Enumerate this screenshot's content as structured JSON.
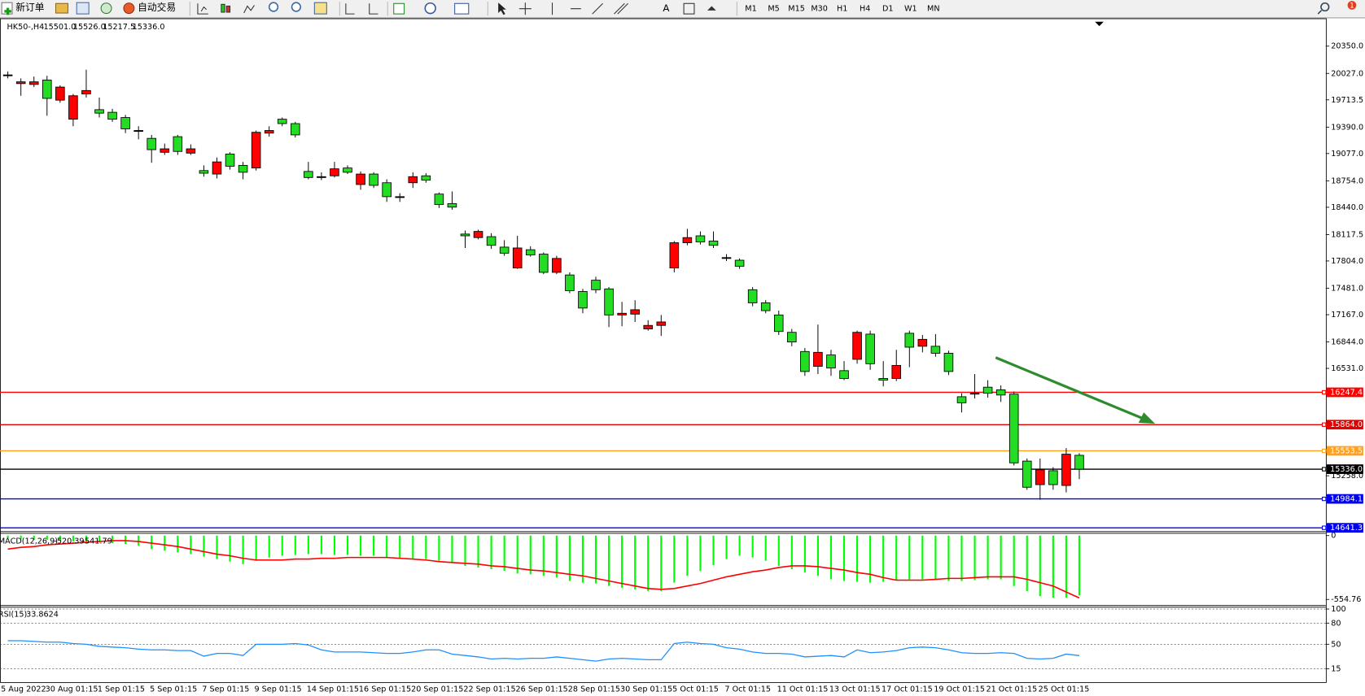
{
  "toolbar": {
    "new_order": "新订单",
    "auto_trading": "自动交易",
    "timeframes": [
      "M1",
      "M5",
      "M15",
      "M30",
      "H1",
      "H4",
      "D1",
      "W1",
      "MN"
    ],
    "alerts": "1"
  },
  "chart_data": [
    {
      "type": "candlestick",
      "title": "HK50-,H4",
      "ohlc_readout": [
        "15501.0",
        "15526.0",
        "15217.5",
        "15336.0"
      ],
      "categories": [
        "5 Aug 2022",
        null,
        null,
        "30 Aug 01:15",
        null,
        null,
        null,
        "1 Sep 01:15",
        null,
        null,
        null,
        "5 Sep 01:15",
        null,
        null,
        null,
        "7 Sep 01:15",
        null,
        null,
        null,
        "9 Sep 01:15",
        null,
        null,
        null,
        "14 Sep 01:15",
        null,
        null,
        null,
        "16 Sep 01:15",
        null,
        null,
        null,
        "20 Sep 01:15",
        null,
        null,
        null,
        "22 Sep 01:15",
        null,
        null,
        null,
        "26 Sep 01:15",
        null,
        null,
        null,
        "28 Sep 01:15",
        null,
        null,
        null,
        "30 Sep 01:15",
        null,
        null,
        null,
        "5 Oct 01:15",
        null,
        null,
        null,
        "7 Oct 01:15",
        null,
        null,
        null,
        "11 Oct 01:15",
        null,
        null,
        null,
        "13 Oct 01:15",
        null,
        null,
        null,
        "17 Oct 01:15",
        null,
        null,
        null,
        "19 Oct 01:15",
        null,
        null,
        null,
        "21 Oct 01:15",
        null,
        null,
        null,
        "25 Oct 01:15",
        null,
        null,
        null
      ],
      "open": [
        20009,
        19906,
        19896,
        19948,
        19710,
        19484,
        19783,
        19597,
        19566,
        19504,
        19350,
        19257,
        19092,
        19277,
        19082,
        18875,
        18834,
        19071,
        18937,
        18906,
        19319,
        19484,
        19432,
        18865,
        18803,
        18813,
        18906,
        18710,
        18834,
        18731,
        18566,
        18731,
        18813,
        18597,
        18484,
        18123,
        18081,
        18092,
        17968,
        17721,
        17937,
        17885,
        17669,
        17638,
        17442,
        17576,
        17473,
        17164,
        17174,
        16999,
        17040,
        17721,
        18020,
        18102,
        18040,
        17844,
        17813,
        17463,
        17308,
        17164,
        16958,
        16731,
        16555,
        16690,
        16504,
        16638,
        16937,
        16411,
        16411,
        16947,
        16793,
        16793,
        16710,
        16195,
        16236,
        16308,
        16277,
        16226,
        15432,
        15153,
        15318,
        15143,
        15501
      ],
      "high": [
        20051,
        19968,
        19989,
        19999,
        19886,
        19783,
        20071,
        19741,
        19607,
        19535,
        19401,
        19298,
        19195,
        19298,
        19185,
        18937,
        19030,
        19092,
        18978,
        19350,
        19401,
        19504,
        19453,
        18978,
        18855,
        18978,
        18937,
        18865,
        18855,
        18772,
        18607,
        18855,
        18844,
        18617,
        18628,
        18164,
        18174,
        18133,
        18050,
        18102,
        17978,
        17906,
        17865,
        17669,
        17473,
        17617,
        17494,
        17319,
        17339,
        17102,
        17164,
        18040,
        18185,
        18154,
        18154,
        17885,
        17834,
        17494,
        17339,
        17215,
        16999,
        16772,
        17050,
        16751,
        16617,
        16978,
        16978,
        16617,
        16751,
        16978,
        16927,
        16937,
        16741,
        16236,
        16463,
        16391,
        16329,
        16257,
        15463,
        15463,
        15360,
        15586,
        15526
      ],
      "low": [
        19968,
        19762,
        19865,
        19525,
        19679,
        19401,
        19741,
        19504,
        19453,
        19319,
        19246,
        18968,
        19061,
        19061,
        19061,
        18803,
        18782,
        18886,
        18772,
        18875,
        19277,
        19401,
        19267,
        18772,
        18762,
        18793,
        18834,
        18648,
        18669,
        18504,
        18504,
        18669,
        18731,
        18432,
        18411,
        17958,
        18061,
        17947,
        17865,
        17710,
        17855,
        17648,
        17648,
        17422,
        17184,
        17422,
        17020,
        17030,
        17081,
        16978,
        16916,
        17669,
        17989,
        17999,
        17958,
        17803,
        17710,
        17267,
        17184,
        16927,
        16793,
        16442,
        16463,
        16442,
        16391,
        16586,
        16514,
        16318,
        16380,
        16545,
        16721,
        16669,
        16452,
        16009,
        16174,
        16184,
        16133,
        15380,
        15092,
        14974,
        15092,
        15061,
        15217.5
      ],
      "close": [
        20009,
        19927,
        19927,
        19731,
        19865,
        19762,
        19824,
        19556,
        19484,
        19370,
        19350,
        19123,
        19133,
        19102,
        19133,
        18844,
        18978,
        18927,
        18855,
        19329,
        19350,
        19432,
        19298,
        18793,
        18803,
        18896,
        18855,
        18834,
        18700,
        18566,
        18566,
        18803,
        18762,
        18473,
        18442,
        18102,
        18154,
        17989,
        17896,
        17958,
        17875,
        17669,
        17834,
        17452,
        17246,
        17463,
        17164,
        17184,
        17226,
        17040,
        17081,
        18020,
        18081,
        18030,
        17989,
        17844,
        17741,
        17308,
        17215,
        16968,
        16844,
        16494,
        16721,
        16535,
        16411,
        16958,
        16586,
        16391,
        16566,
        16782,
        16875,
        16710,
        16494,
        16123,
        16236,
        16236,
        16215,
        15411,
        15122,
        15329,
        15153,
        15514,
        15336
      ],
      "up_color": "#ff0000",
      "down_color": "#22dd22",
      "doji_color": "#000000",
      "ylim": [
        14607,
        20670
      ],
      "yticks": [
        {
          "value": 20350,
          "label": "20350.0"
        },
        {
          "value": 20027,
          "label": "20027.0"
        },
        19713.5,
        {
          "value": 19390,
          "label": "19390.0"
        },
        {
          "value": 19077,
          "label": "19077.0"
        },
        {
          "value": 18754,
          "label": "18754.0"
        },
        {
          "value": 18440,
          "label": "18440.0"
        },
        18117.5,
        {
          "value": 17804,
          "label": "17804.0"
        },
        {
          "value": 17481,
          "label": "17481.0"
        },
        {
          "value": 17167,
          "label": "17167.0"
        },
        {
          "value": 16844,
          "label": "16844.0"
        },
        {
          "value": 16531,
          "label": "16531.0"
        },
        {
          "value": 15258,
          "label": "15258.0"
        }
      ],
      "levels": [
        {
          "value": 16247.4,
          "color": "#ff0000"
        },
        {
          "value": 15864,
          "label": "15864.0",
          "color": "#e00000"
        },
        {
          "value": 15553.5,
          "color": "#ffa020"
        },
        {
          "value": 15336,
          "label": "15336.0",
          "color": "#000000"
        },
        {
          "value": 14984.1,
          "color": "#0000ee"
        },
        {
          "value": 14641.3,
          "color": "#0000ee"
        }
      ]
    },
    {
      "type": "bar",
      "title": "MACD(12,26,9)",
      "series": [
        {
          "type": "bar",
          "color": "#00ff00",
          "values": [
            -22,
            -29,
            -37,
            -37,
            -44,
            -51,
            -51,
            -58,
            -66,
            -73,
            -88,
            -117,
            -131,
            -146,
            -161,
            -183,
            -204,
            -226,
            -248,
            -219,
            -190,
            -175,
            -168,
            -161,
            -161,
            -168,
            -168,
            -175,
            -175,
            -190,
            -197,
            -197,
            -204,
            -219,
            -234,
            -263,
            -277,
            -292,
            -307,
            -329,
            -336,
            -350,
            -365,
            -394,
            -409,
            -416,
            -438,
            -453,
            -467,
            -482,
            -482,
            -409,
            -350,
            -307,
            -256,
            -204,
            -175,
            -190,
            -219,
            -263,
            -292,
            -321,
            -350,
            -380,
            -394,
            -402,
            -409,
            -402,
            -387,
            -380,
            -380,
            -380,
            -394,
            -394,
            -387,
            -380,
            -380,
            -438,
            -482,
            -526,
            -540,
            -540,
            -520.39
          ]
        },
        {
          "type": "line",
          "color": "#ff0000",
          "values": [
            -117,
            -102,
            -95,
            -80,
            -73,
            -66,
            -58,
            -51,
            -44,
            -44,
            -51,
            -66,
            -80,
            -95,
            -117,
            -139,
            -161,
            -175,
            -197,
            -212,
            -212,
            -212,
            -204,
            -204,
            -197,
            -197,
            -190,
            -190,
            -190,
            -190,
            -197,
            -204,
            -212,
            -226,
            -234,
            -241,
            -248,
            -263,
            -270,
            -285,
            -299,
            -307,
            -321,
            -336,
            -350,
            -372,
            -394,
            -416,
            -438,
            -460,
            -467,
            -460,
            -438,
            -416,
            -387,
            -358,
            -336,
            -314,
            -299,
            -277,
            -263,
            -263,
            -270,
            -285,
            -299,
            -321,
            -336,
            -365,
            -387,
            -387,
            -387,
            -380,
            -372,
            -372,
            -365,
            -358,
            -358,
            -358,
            -380,
            -409,
            -438,
            -490,
            -541.79
          ]
        }
      ],
      "ylim": [
        -600,
        20
      ],
      "yticks": [
        0,
        -554.76
      ]
    },
    {
      "type": "line",
      "title": "RSI(15)",
      "color": "#1e90ff",
      "values": [
        55,
        55,
        54,
        53,
        53,
        51,
        50,
        47,
        46,
        45,
        43,
        42,
        42,
        41,
        41,
        33,
        37,
        37,
        34,
        50,
        50,
        50,
        51,
        49,
        42,
        39,
        39,
        39,
        38,
        37,
        37,
        39,
        42,
        42,
        36,
        34,
        32,
        29,
        30,
        29,
        30,
        30,
        32,
        30,
        28,
        26,
        29,
        30,
        29,
        28,
        28,
        51,
        53,
        51,
        50,
        45,
        43,
        39,
        37,
        37,
        36,
        32,
        33,
        34,
        32,
        42,
        38,
        39,
        41,
        45,
        46,
        45,
        42,
        38,
        37,
        37,
        38,
        37,
        30,
        29,
        30,
        36,
        33.8624
      ],
      "ylim": [
        -2.5,
        102.5
      ],
      "yticks": [
        100,
        80,
        50,
        15
      ]
    }
  ]
}
